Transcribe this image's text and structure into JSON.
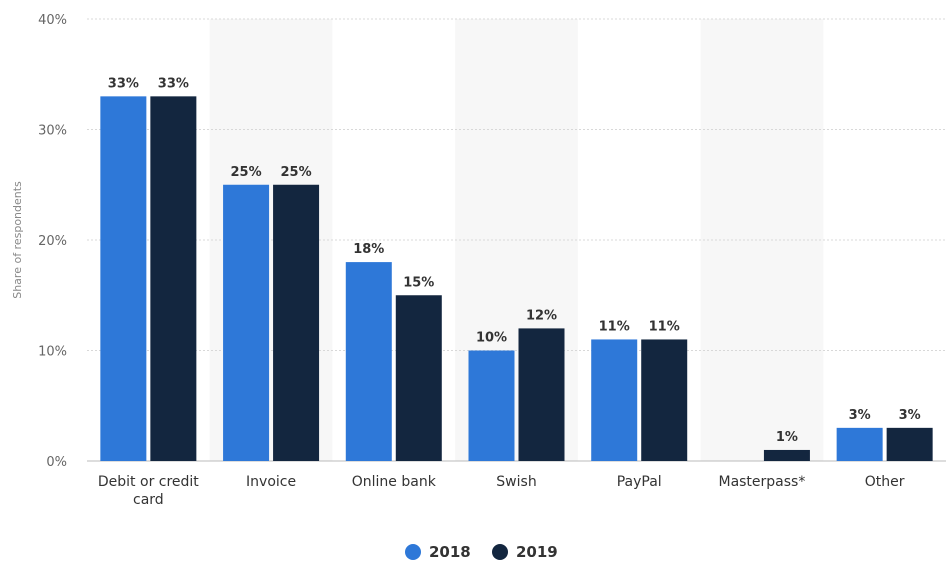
{
  "chart_data": {
    "type": "bar",
    "ylabel": "Share of respondents",
    "ylim": [
      0,
      40
    ],
    "yticks": [
      "0%",
      "10%",
      "20%",
      "30%",
      "40%"
    ],
    "grid": true,
    "legend_position": "bottom-center",
    "categories": [
      "Debit or credit card",
      "Invoice",
      "Online bank",
      "Swish",
      "PayPal",
      "Masterpass*",
      "Other"
    ],
    "series": [
      {
        "name": "2018",
        "color": "#2e78d8",
        "values": [
          33,
          25,
          18,
          10,
          11,
          null,
          3
        ],
        "labels": [
          "33%",
          "25%",
          "18%",
          "10%",
          "11%",
          "",
          "3%"
        ]
      },
      {
        "name": "2019",
        "color": "#13263f",
        "values": [
          33,
          25,
          15,
          12,
          11,
          1,
          3
        ],
        "labels": [
          "33%",
          "25%",
          "15%",
          "12%",
          "11%",
          "1%",
          "3%"
        ]
      }
    ]
  }
}
